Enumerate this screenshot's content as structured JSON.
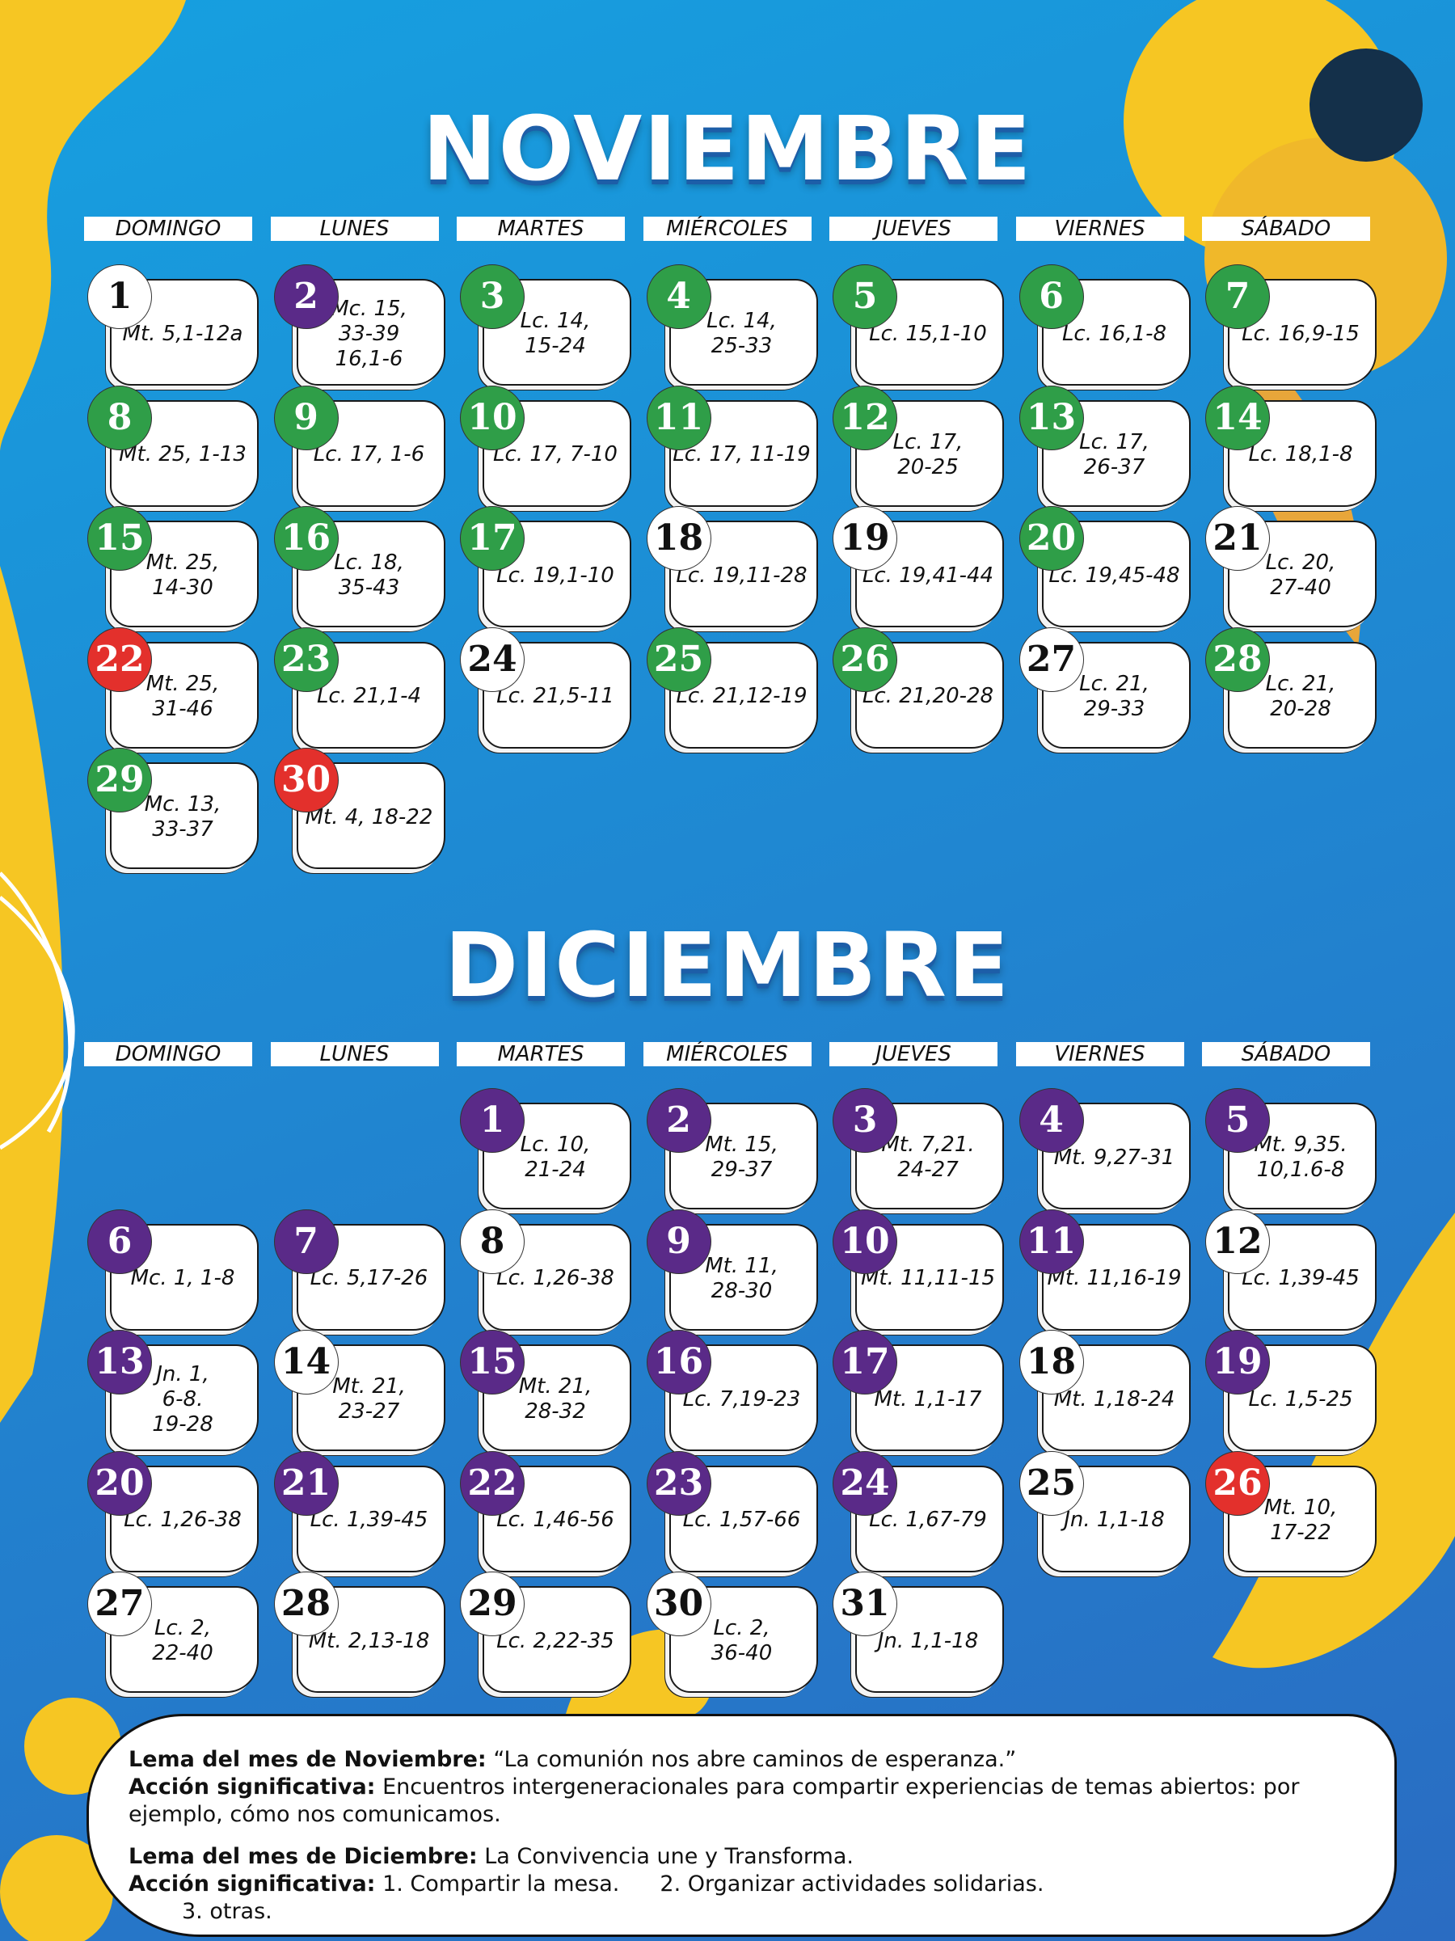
{
  "months": [
    {
      "title": "NOVIEMBRE",
      "weekdays": [
        "DOMINGO",
        "LUNES",
        "MARTES",
        "MIÉRCOLES",
        "JUEVES",
        "VIERNES",
        "SÁBADO"
      ],
      "weeks": [
        [
          {
            "day": 1,
            "color": "white",
            "reading": [
              "Mt. 5,1-12a"
            ]
          },
          {
            "day": 2,
            "color": "purple",
            "reading": [
              "Mc. 15,",
              "33-39",
              "16,1-6"
            ]
          },
          {
            "day": 3,
            "color": "green",
            "reading": [
              "Lc. 14,",
              "15-24"
            ]
          },
          {
            "day": 4,
            "color": "green",
            "reading": [
              "Lc. 14,",
              "25-33"
            ]
          },
          {
            "day": 5,
            "color": "green",
            "reading": [
              "Lc. 15,1-10"
            ]
          },
          {
            "day": 6,
            "color": "green",
            "reading": [
              "Lc. 16,1-8"
            ]
          },
          {
            "day": 7,
            "color": "green",
            "reading": [
              "Lc. 16,9-15"
            ]
          }
        ],
        [
          {
            "day": 8,
            "color": "green",
            "reading": [
              "Mt. 25, 1-13"
            ]
          },
          {
            "day": 9,
            "color": "green",
            "reading": [
              "Lc. 17, 1-6"
            ]
          },
          {
            "day": 10,
            "color": "green",
            "reading": [
              "Lc. 17, 7-10"
            ]
          },
          {
            "day": 11,
            "color": "green",
            "reading": [
              "Lc. 17, 11-19"
            ]
          },
          {
            "day": 12,
            "color": "green",
            "reading": [
              "Lc. 17,",
              "20-25"
            ]
          },
          {
            "day": 13,
            "color": "green",
            "reading": [
              "Lc. 17,",
              "26-37"
            ]
          },
          {
            "day": 14,
            "color": "green",
            "reading": [
              "Lc. 18,1-8"
            ]
          }
        ],
        [
          {
            "day": 15,
            "color": "green",
            "reading": [
              "Mt. 25,",
              "14-30"
            ]
          },
          {
            "day": 16,
            "color": "green",
            "reading": [
              "Lc. 18,",
              "35-43"
            ]
          },
          {
            "day": 17,
            "color": "green",
            "reading": [
              "Lc. 19,1-10"
            ]
          },
          {
            "day": 18,
            "color": "white",
            "reading": [
              "Lc. 19,11-28"
            ]
          },
          {
            "day": 19,
            "color": "white",
            "reading": [
              "Lc. 19,41-44"
            ]
          },
          {
            "day": 20,
            "color": "green",
            "reading": [
              "Lc. 19,45-48"
            ]
          },
          {
            "day": 21,
            "color": "white",
            "reading": [
              "Lc. 20,",
              "27-40"
            ]
          }
        ],
        [
          {
            "day": 22,
            "color": "red",
            "reading": [
              "Mt. 25,",
              "31-46"
            ]
          },
          {
            "day": 23,
            "color": "green",
            "reading": [
              "Lc. 21,1-4"
            ]
          },
          {
            "day": 24,
            "color": "white",
            "reading": [
              "Lc. 21,5-11"
            ]
          },
          {
            "day": 25,
            "color": "green",
            "reading": [
              "Lc. 21,12-19"
            ]
          },
          {
            "day": 26,
            "color": "green",
            "reading": [
              "Lc. 21,20-28"
            ]
          },
          {
            "day": 27,
            "color": "white",
            "reading": [
              "Lc. 21,",
              "29-33"
            ]
          },
          {
            "day": 28,
            "color": "green",
            "reading": [
              "Lc. 21,",
              "20-28"
            ]
          }
        ],
        [
          {
            "day": 29,
            "color": "green",
            "reading": [
              "Mc. 13,",
              "33-37"
            ]
          },
          {
            "day": 30,
            "color": "red",
            "reading": [
              "Mt. 4, 18-22"
            ]
          },
          null,
          null,
          null,
          null,
          null
        ]
      ]
    },
    {
      "title": "DICIEMBRE",
      "weekdays": [
        "DOMINGO",
        "LUNES",
        "MARTES",
        "MIÉRCOLES",
        "JUEVES",
        "VIERNES",
        "SÁBADO"
      ],
      "weeks": [
        [
          null,
          null,
          {
            "day": 1,
            "color": "purple",
            "reading": [
              "Lc. 10,",
              "21-24"
            ]
          },
          {
            "day": 2,
            "color": "purple",
            "reading": [
              "Mt. 15,",
              "29-37"
            ]
          },
          {
            "day": 3,
            "color": "purple",
            "reading": [
              "Mt. 7,21.",
              "24-27"
            ]
          },
          {
            "day": 4,
            "color": "purple",
            "reading": [
              "Mt. 9,27-31"
            ]
          },
          {
            "day": 5,
            "color": "purple",
            "reading": [
              "Mt. 9,35.",
              "10,1.6-8"
            ]
          }
        ],
        [
          {
            "day": 6,
            "color": "purple",
            "reading": [
              "Mc. 1, 1-8"
            ]
          },
          {
            "day": 7,
            "color": "purple",
            "reading": [
              "Lc. 5,17-26"
            ]
          },
          {
            "day": 8,
            "color": "white",
            "reading": [
              "Lc. 1,26-38"
            ]
          },
          {
            "day": 9,
            "color": "purple",
            "reading": [
              "Mt. 11,",
              "28-30"
            ]
          },
          {
            "day": 10,
            "color": "purple",
            "reading": [
              "Mt. 11,11-15"
            ]
          },
          {
            "day": 11,
            "color": "purple",
            "reading": [
              "Mt. 11,16-19"
            ]
          },
          {
            "day": 12,
            "color": "white",
            "reading": [
              "Lc. 1,39-45"
            ]
          }
        ],
        [
          {
            "day": 13,
            "color": "purple",
            "reading": [
              "Jn. 1,",
              "6-8.",
              "19-28"
            ]
          },
          {
            "day": 14,
            "color": "white",
            "reading": [
              "Mt. 21,",
              "23-27"
            ]
          },
          {
            "day": 15,
            "color": "purple",
            "reading": [
              "Mt. 21,",
              "28-32"
            ]
          },
          {
            "day": 16,
            "color": "purple",
            "reading": [
              "Lc. 7,19-23"
            ]
          },
          {
            "day": 17,
            "color": "purple",
            "reading": [
              "Mt. 1,1-17"
            ]
          },
          {
            "day": 18,
            "color": "white",
            "reading": [
              "Mt. 1,18-24"
            ]
          },
          {
            "day": 19,
            "color": "purple",
            "reading": [
              "Lc. 1,5-25"
            ]
          }
        ],
        [
          {
            "day": 20,
            "color": "purple",
            "reading": [
              "Lc. 1,26-38"
            ]
          },
          {
            "day": 21,
            "color": "purple",
            "reading": [
              "Lc. 1,39-45"
            ]
          },
          {
            "day": 22,
            "color": "purple",
            "reading": [
              "Lc. 1,46-56"
            ]
          },
          {
            "day": 23,
            "color": "purple",
            "reading": [
              "Lc. 1,57-66"
            ]
          },
          {
            "day": 24,
            "color": "purple",
            "reading": [
              "Lc. 1,67-79"
            ]
          },
          {
            "day": 25,
            "color": "white",
            "reading": [
              "Jn. 1,1-18"
            ]
          },
          {
            "day": 26,
            "color": "red",
            "reading": [
              "Mt. 10,",
              "17-22"
            ]
          }
        ],
        [
          {
            "day": 27,
            "color": "white",
            "reading": [
              "Lc. 2,",
              "22-40"
            ]
          },
          {
            "day": 28,
            "color": "white",
            "reading": [
              "Mt. 2,13-18"
            ]
          },
          {
            "day": 29,
            "color": "white",
            "reading": [
              "Lc. 2,22-35"
            ]
          },
          {
            "day": 30,
            "color": "white",
            "reading": [
              "Lc. 2,",
              "36-40"
            ]
          },
          {
            "day": 31,
            "color": "white",
            "reading": [
              "Jn. 1,1-18"
            ]
          },
          null,
          null
        ]
      ]
    }
  ],
  "footer": {
    "november_motto": {
      "label": "Lema del mes de Noviembre:",
      "text": "“La comunión nos abre caminos de esperanza.”"
    },
    "november_action": {
      "label": "Acción significativa:",
      "text": "Encuentros intergeneracionales para compartir experiencias de temas abiertos: por ejemplo, cómo nos comunicamos."
    },
    "december_motto": {
      "label": "Lema del mes de Diciembre:",
      "text": "La Convivencia une y Transforma."
    },
    "december_action": {
      "label": "Acción significativa:",
      "items": [
        "1. Compartir la mesa.",
        "2. Organizar actividades solidarias.",
        "3. otras."
      ]
    }
  }
}
